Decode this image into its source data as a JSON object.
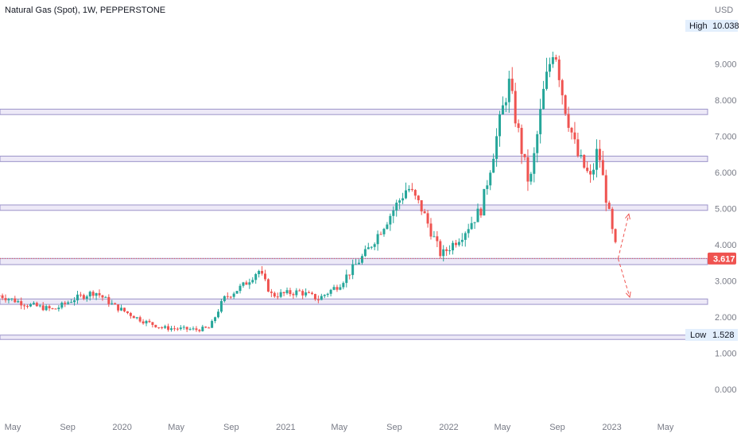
{
  "header": {
    "title": "Natural Gas (Spot), 1W, PEPPERSTONE",
    "currency": "USD"
  },
  "colors": {
    "up": "#26a69a",
    "down": "#ef5350",
    "zone_border": "#9c93c9",
    "zone_fill": "#ede9f7",
    "price_line": "#ef5350",
    "axis_text": "#787b86"
  },
  "badges": {
    "high_label": "High",
    "high_value": "10.038",
    "low_label": "Low",
    "low_value": "1.528",
    "last_value": "3.617"
  },
  "chart_data": {
    "type": "candlestick",
    "y_unit": "USD",
    "ylim": [
      -0.1,
      11.0
    ],
    "y_ticks": [
      "0.000",
      "1.000",
      "2.000",
      "3.000",
      "4.000",
      "5.000",
      "6.000",
      "7.000",
      "8.000",
      "9.000"
    ],
    "x_ticks": [
      "May",
      "Sep",
      "2020",
      "May",
      "Sep",
      "2021",
      "May",
      "Sep",
      "2022",
      "May",
      "Sep",
      "2023",
      "May"
    ],
    "x_tick_dates": [
      "2019-05-01",
      "2019-09-01",
      "2020-01-01",
      "2020-05-01",
      "2020-09-01",
      "2021-01-01",
      "2021-05-01",
      "2021-09-01",
      "2022-01-01",
      "2022-05-01",
      "2022-09-01",
      "2023-01-01",
      "2023-05-01"
    ],
    "high": 10.038,
    "low": 1.528,
    "last": 3.617,
    "zones": [
      [
        7.6,
        7.75
      ],
      [
        6.3,
        6.45
      ],
      [
        4.95,
        5.1
      ],
      [
        3.45,
        3.62
      ],
      [
        2.35,
        2.5
      ],
      [
        1.38,
        1.5
      ]
    ],
    "anchor_path": [
      [
        "2019-04-01",
        2.6
      ],
      [
        "2019-06-01",
        2.35
      ],
      [
        "2019-08-01",
        2.2
      ],
      [
        "2019-09-15",
        2.5
      ],
      [
        "2019-11-01",
        2.7
      ],
      [
        "2019-12-15",
        2.3
      ],
      [
        "2020-02-15",
        1.9
      ],
      [
        "2020-04-01",
        1.7
      ],
      [
        "2020-06-15",
        1.65
      ],
      [
        "2020-07-15",
        1.7
      ],
      [
        "2020-08-15",
        2.5
      ],
      [
        "2020-10-01",
        2.9
      ],
      [
        "2020-11-01",
        3.3
      ],
      [
        "2020-12-01",
        2.6
      ],
      [
        "2021-02-01",
        2.7
      ],
      [
        "2021-03-15",
        2.5
      ],
      [
        "2021-05-01",
        2.9
      ],
      [
        "2021-07-01",
        3.8
      ],
      [
        "2021-09-01",
        5.0
      ],
      [
        "2021-10-01",
        5.6
      ],
      [
        "2021-11-01",
        5.0
      ],
      [
        "2021-12-15",
        3.7
      ],
      [
        "2022-02-01",
        4.3
      ],
      [
        "2022-03-15",
        5.0
      ],
      [
        "2022-04-15",
        6.8
      ],
      [
        "2022-05-15",
        8.5
      ],
      [
        "2022-06-15",
        6.5
      ],
      [
        "2022-07-01",
        5.6
      ],
      [
        "2022-08-01",
        8.2
      ],
      [
        "2022-08-25",
        9.6
      ],
      [
        "2022-09-15",
        8.0
      ],
      [
        "2022-10-15",
        6.5
      ],
      [
        "2022-11-15",
        5.8
      ],
      [
        "2022-12-01",
        6.7
      ],
      [
        "2022-12-15",
        5.6
      ],
      [
        "2023-01-01",
        4.4
      ],
      [
        "2023-01-15",
        3.617
      ]
    ],
    "projection": [
      {
        "from": [
          "2023-01-15",
          3.617
        ],
        "to": [
          "2023-02-08",
          4.85
        ]
      },
      {
        "from": [
          "2023-01-15",
          3.617
        ],
        "to": [
          "2023-02-10",
          2.55
        ]
      }
    ]
  }
}
